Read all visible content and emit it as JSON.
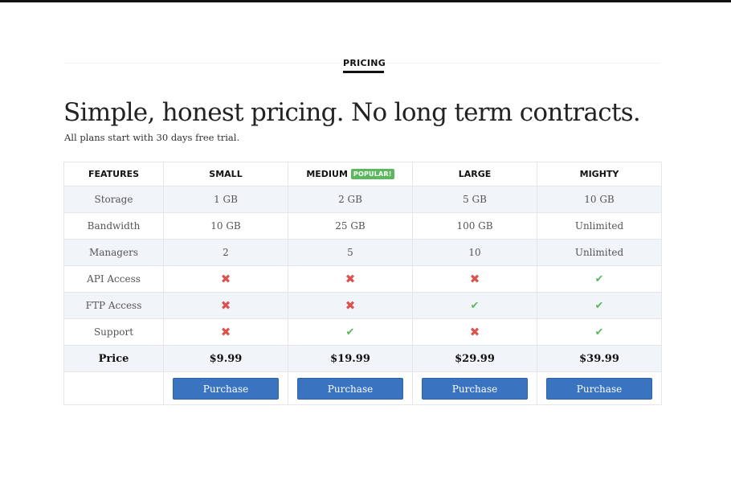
{
  "section": {
    "label": "PRICING"
  },
  "hero": {
    "headline": "Simple, honest pricing. No long term contracts.",
    "subline": "All plans start with 30 days free trial."
  },
  "table": {
    "features_header": "FEATURES",
    "plans": [
      {
        "name": "SMALL",
        "badge": ""
      },
      {
        "name": "MEDIUM",
        "badge": "POPULAR!"
      },
      {
        "name": "LARGE",
        "badge": ""
      },
      {
        "name": "MIGHTY",
        "badge": ""
      }
    ],
    "rows": [
      {
        "label": "Storage",
        "values": [
          "1 GB",
          "2 GB",
          "5 GB",
          "10 GB"
        ]
      },
      {
        "label": "Bandwidth",
        "values": [
          "10 GB",
          "25 GB",
          "100 GB",
          "Unlimited"
        ]
      },
      {
        "label": "Managers",
        "values": [
          "2",
          "5",
          "10",
          "Unlimited"
        ]
      },
      {
        "label": "API Access",
        "values": [
          false,
          false,
          false,
          true
        ]
      },
      {
        "label": "FTP Access",
        "values": [
          false,
          false,
          true,
          true
        ]
      },
      {
        "label": "Support",
        "values": [
          false,
          true,
          false,
          true
        ]
      }
    ],
    "price_label": "Price",
    "prices": [
      "$9.99",
      "$19.99",
      "$29.99",
      "$39.99"
    ],
    "purchase_label": "Purchase"
  },
  "icons": {
    "included": "check-icon",
    "excluded": "cross-icon"
  },
  "colors": {
    "accent_button": "#3a74c1",
    "check": "#5cb85c",
    "cross": "#d9534f",
    "badge": "#5cb85c",
    "row_shade": "#f1f4f9"
  }
}
